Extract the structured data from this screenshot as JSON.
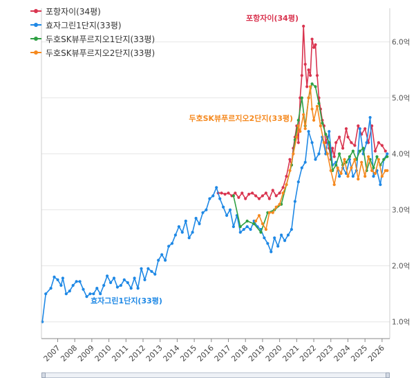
{
  "legend": {
    "items": [
      {
        "label": "포항자이(34평)",
        "color": "#d9344f"
      },
      {
        "label": "효자그린1단지(33평)",
        "color": "#1e88e5"
      },
      {
        "label": "두호SK뷰푸르지오1단지(33평)",
        "color": "#2ea043"
      },
      {
        "label": "두호SK뷰푸르지오2단지(33평)",
        "color": "#f5891f"
      }
    ]
  },
  "chart_data": {
    "type": "line",
    "xlabel": "",
    "ylabel": "",
    "x_ticks": [
      "2007",
      "2008",
      "2009",
      "2010",
      "2011",
      "2012",
      "2013",
      "2014",
      "2015",
      "2016",
      "2017",
      "2018",
      "2019",
      "2020",
      "2021",
      "2022",
      "2023",
      "2024",
      "2025",
      "2026"
    ],
    "y_ticks": [
      "1.0억",
      "2.0억",
      "3.0억",
      "4.0억",
      "5.0억",
      "6.0억"
    ],
    "y_tick_values": [
      1.0,
      2.0,
      3.0,
      4.0,
      5.0,
      6.0
    ],
    "xlim": [
      2006.05,
      2026.45
    ],
    "ylim": [
      0.7,
      6.6
    ],
    "grid": true,
    "legend_position": "top-left",
    "annotations": [
      {
        "text": "포항자이(34평)",
        "series": 0
      },
      {
        "text": "효자그린1단지(33평)",
        "series": 1
      },
      {
        "text": "두호SK뷰푸르지오2단지(33평)",
        "series": 3
      }
    ],
    "series": [
      {
        "name": "포항자이(34평)",
        "color": "#d9344f",
        "points": [
          [
            2016.4,
            3.3
          ],
          [
            2016.6,
            3.3
          ],
          [
            2016.8,
            3.28
          ],
          [
            2017.0,
            3.3
          ],
          [
            2017.2,
            3.25
          ],
          [
            2017.4,
            3.3
          ],
          [
            2017.6,
            3.22
          ],
          [
            2017.8,
            3.3
          ],
          [
            2018.0,
            3.2
          ],
          [
            2018.2,
            3.28
          ],
          [
            2018.4,
            3.3
          ],
          [
            2018.6,
            3.25
          ],
          [
            2018.8,
            3.2
          ],
          [
            2019.0,
            3.25
          ],
          [
            2019.2,
            3.3
          ],
          [
            2019.4,
            3.2
          ],
          [
            2019.6,
            3.35
          ],
          [
            2019.8,
            3.25
          ],
          [
            2020.0,
            3.3
          ],
          [
            2020.2,
            3.4
          ],
          [
            2020.4,
            3.6
          ],
          [
            2020.6,
            3.9
          ],
          [
            2020.7,
            3.8
          ],
          [
            2020.8,
            4.1
          ],
          [
            2020.9,
            4.3
          ],
          [
            2021.0,
            4.5
          ],
          [
            2021.1,
            4.2
          ],
          [
            2021.2,
            5.0
          ],
          [
            2021.3,
            5.4
          ],
          [
            2021.4,
            6.28
          ],
          [
            2021.5,
            5.6
          ],
          [
            2021.6,
            5.2
          ],
          [
            2021.7,
            5.5
          ],
          [
            2021.8,
            5.4
          ],
          [
            2021.9,
            6.05
          ],
          [
            2022.0,
            5.9
          ],
          [
            2022.1,
            5.95
          ],
          [
            2022.2,
            5.4
          ],
          [
            2022.3,
            5.0
          ],
          [
            2022.4,
            4.8
          ],
          [
            2022.5,
            4.6
          ],
          [
            2022.6,
            4.5
          ],
          [
            2022.7,
            4.2
          ],
          [
            2022.8,
            4.3
          ],
          [
            2022.9,
            4.1
          ],
          [
            2023.0,
            3.9
          ],
          [
            2023.1,
            4.1
          ],
          [
            2023.2,
            3.95
          ],
          [
            2023.3,
            4.2
          ],
          [
            2023.5,
            4.3
          ],
          [
            2023.7,
            4.1
          ],
          [
            2023.9,
            4.45
          ],
          [
            2024.0,
            4.3
          ],
          [
            2024.2,
            4.2
          ],
          [
            2024.4,
            4.15
          ],
          [
            2024.6,
            4.5
          ],
          [
            2024.8,
            4.35
          ],
          [
            2025.0,
            4.45
          ],
          [
            2025.2,
            4.2
          ],
          [
            2025.4,
            4.5
          ],
          [
            2025.6,
            4.05
          ],
          [
            2025.8,
            4.2
          ],
          [
            2026.0,
            4.15
          ],
          [
            2026.2,
            4.05
          ]
        ]
      },
      {
        "name": "효자그린1단지(33평)",
        "color": "#1e88e5",
        "points": [
          [
            2006.1,
            1.0
          ],
          [
            2006.3,
            1.5
          ],
          [
            2006.6,
            1.6
          ],
          [
            2006.8,
            1.8
          ],
          [
            2007.0,
            1.75
          ],
          [
            2007.2,
            1.65
          ],
          [
            2007.3,
            1.78
          ],
          [
            2007.5,
            1.5
          ],
          [
            2007.7,
            1.55
          ],
          [
            2007.9,
            1.65
          ],
          [
            2008.1,
            1.72
          ],
          [
            2008.3,
            1.72
          ],
          [
            2008.5,
            1.58
          ],
          [
            2008.7,
            1.45
          ],
          [
            2008.9,
            1.5
          ],
          [
            2009.1,
            1.5
          ],
          [
            2009.3,
            1.6
          ],
          [
            2009.5,
            1.5
          ],
          [
            2009.7,
            1.65
          ],
          [
            2009.9,
            1.82
          ],
          [
            2010.1,
            1.7
          ],
          [
            2010.3,
            1.78
          ],
          [
            2010.5,
            1.62
          ],
          [
            2010.7,
            1.65
          ],
          [
            2010.9,
            1.75
          ],
          [
            2011.1,
            1.7
          ],
          [
            2011.3,
            1.6
          ],
          [
            2011.5,
            1.78
          ],
          [
            2011.7,
            1.6
          ],
          [
            2011.9,
            1.95
          ],
          [
            2012.1,
            1.75
          ],
          [
            2012.3,
            1.95
          ],
          [
            2012.5,
            1.9
          ],
          [
            2012.7,
            1.85
          ],
          [
            2012.9,
            2.1
          ],
          [
            2013.1,
            2.2
          ],
          [
            2013.3,
            2.1
          ],
          [
            2013.5,
            2.35
          ],
          [
            2013.7,
            2.4
          ],
          [
            2013.9,
            2.55
          ],
          [
            2014.1,
            2.7
          ],
          [
            2014.3,
            2.6
          ],
          [
            2014.5,
            2.8
          ],
          [
            2014.7,
            2.5
          ],
          [
            2014.9,
            2.6
          ],
          [
            2015.1,
            2.85
          ],
          [
            2015.3,
            2.75
          ],
          [
            2015.5,
            2.95
          ],
          [
            2015.7,
            3.0
          ],
          [
            2015.9,
            3.2
          ],
          [
            2016.1,
            3.25
          ],
          [
            2016.3,
            3.4
          ],
          [
            2016.5,
            3.2
          ],
          [
            2016.7,
            3.05
          ],
          [
            2016.9,
            2.9
          ],
          [
            2017.1,
            3.0
          ],
          [
            2017.3,
            2.7
          ],
          [
            2017.5,
            2.9
          ],
          [
            2017.7,
            2.6
          ],
          [
            2017.9,
            2.65
          ],
          [
            2018.1,
            2.7
          ],
          [
            2018.3,
            2.65
          ],
          [
            2018.5,
            2.8
          ],
          [
            2018.7,
            2.7
          ],
          [
            2018.9,
            2.65
          ],
          [
            2019.1,
            2.5
          ],
          [
            2019.3,
            2.4
          ],
          [
            2019.5,
            2.25
          ],
          [
            2019.7,
            2.5
          ],
          [
            2019.9,
            2.35
          ],
          [
            2020.1,
            2.55
          ],
          [
            2020.3,
            2.45
          ],
          [
            2020.5,
            2.55
          ],
          [
            2020.7,
            2.65
          ],
          [
            2020.9,
            3.15
          ],
          [
            2021.1,
            3.5
          ],
          [
            2021.3,
            3.75
          ],
          [
            2021.5,
            3.85
          ],
          [
            2021.7,
            4.4
          ],
          [
            2021.9,
            4.2
          ],
          [
            2022.1,
            3.9
          ],
          [
            2022.3,
            4.0
          ],
          [
            2022.5,
            4.3
          ],
          [
            2022.7,
            4.0
          ],
          [
            2022.9,
            4.4
          ],
          [
            2023.1,
            3.8
          ],
          [
            2023.3,
            3.85
          ],
          [
            2023.5,
            3.6
          ],
          [
            2023.7,
            3.75
          ],
          [
            2023.9,
            3.65
          ],
          [
            2024.1,
            3.9
          ],
          [
            2024.3,
            3.6
          ],
          [
            2024.5,
            3.7
          ],
          [
            2024.7,
            4.45
          ],
          [
            2024.9,
            4.0
          ],
          [
            2025.1,
            4.2
          ],
          [
            2025.3,
            4.65
          ],
          [
            2025.5,
            3.6
          ],
          [
            2025.7,
            3.7
          ],
          [
            2025.9,
            3.45
          ],
          [
            2026.1,
            3.9
          ],
          [
            2026.3,
            4.0
          ]
        ]
      },
      {
        "name": "두호SK뷰푸르지오1단지(33평)",
        "color": "#2ea043",
        "points": [
          [
            2017.3,
            3.25
          ],
          [
            2017.7,
            2.7
          ],
          [
            2018.1,
            2.8
          ],
          [
            2018.5,
            2.75
          ],
          [
            2018.9,
            2.6
          ],
          [
            2019.3,
            2.95
          ],
          [
            2019.7,
            3.0
          ],
          [
            2020.1,
            3.1
          ],
          [
            2020.4,
            3.45
          ],
          [
            2020.7,
            3.8
          ],
          [
            2020.9,
            4.25
          ],
          [
            2021.1,
            4.6
          ],
          [
            2021.3,
            5.0
          ],
          [
            2021.5,
            4.5
          ],
          [
            2021.7,
            5.0
          ],
          [
            2021.9,
            5.25
          ],
          [
            2022.1,
            5.2
          ],
          [
            2022.3,
            4.9
          ],
          [
            2022.5,
            4.55
          ],
          [
            2022.7,
            4.35
          ],
          [
            2022.9,
            4.2
          ],
          [
            2023.1,
            3.7
          ],
          [
            2023.3,
            3.8
          ],
          [
            2023.5,
            4.0
          ],
          [
            2023.7,
            3.8
          ],
          [
            2023.9,
            3.85
          ],
          [
            2024.1,
            3.95
          ],
          [
            2024.3,
            4.05
          ],
          [
            2024.5,
            3.9
          ],
          [
            2024.7,
            4.05
          ],
          [
            2024.9,
            4.1
          ],
          [
            2025.1,
            3.7
          ],
          [
            2025.3,
            3.9
          ],
          [
            2025.5,
            3.75
          ],
          [
            2025.7,
            3.95
          ],
          [
            2025.9,
            3.8
          ],
          [
            2026.1,
            3.9
          ],
          [
            2026.3,
            3.95
          ]
        ]
      },
      {
        "name": "두호SK뷰푸르지오2단지(33평)",
        "color": "#f5891f",
        "points": [
          [
            2018.6,
            2.8
          ],
          [
            2018.8,
            2.9
          ],
          [
            2019.0,
            2.75
          ],
          [
            2019.2,
            2.65
          ],
          [
            2019.4,
            2.95
          ],
          [
            2019.6,
            2.95
          ],
          [
            2019.8,
            3.05
          ],
          [
            2020.0,
            3.1
          ],
          [
            2020.2,
            3.3
          ],
          [
            2020.4,
            3.45
          ],
          [
            2020.6,
            3.7
          ],
          [
            2020.8,
            4.0
          ],
          [
            2021.0,
            4.3
          ],
          [
            2021.1,
            4.5
          ],
          [
            2021.2,
            4.4
          ],
          [
            2021.4,
            4.7
          ],
          [
            2021.5,
            4.45
          ],
          [
            2021.7,
            5.0
          ],
          [
            2021.8,
            5.2
          ],
          [
            2021.9,
            4.8
          ],
          [
            2022.0,
            4.6
          ],
          [
            2022.2,
            4.85
          ],
          [
            2022.4,
            4.5
          ],
          [
            2022.6,
            4.2
          ],
          [
            2022.8,
            4.0
          ],
          [
            2023.0,
            3.7
          ],
          [
            2023.2,
            3.45
          ],
          [
            2023.4,
            3.75
          ],
          [
            2023.6,
            3.65
          ],
          [
            2023.8,
            3.9
          ],
          [
            2024.0,
            3.6
          ],
          [
            2024.2,
            3.75
          ],
          [
            2024.4,
            3.9
          ],
          [
            2024.6,
            3.55
          ],
          [
            2024.8,
            3.85
          ],
          [
            2025.0,
            3.6
          ],
          [
            2025.2,
            3.95
          ],
          [
            2025.4,
            3.7
          ],
          [
            2025.6,
            3.65
          ],
          [
            2025.8,
            3.9
          ],
          [
            2026.0,
            3.6
          ],
          [
            2026.2,
            3.7
          ],
          [
            2026.3,
            3.7
          ]
        ]
      }
    ]
  }
}
